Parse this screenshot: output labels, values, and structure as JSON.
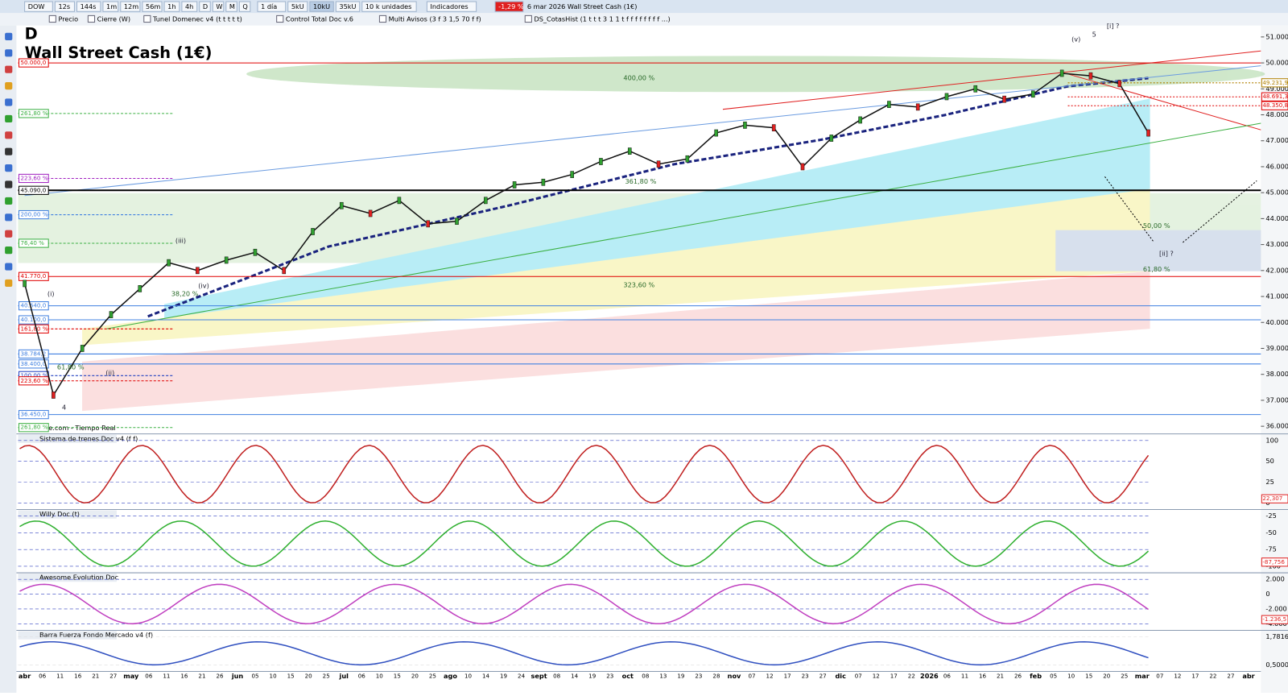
{
  "toolbar": {
    "symbol": "DOW",
    "timeframes": [
      "12s",
      "144s",
      "1m",
      "12m",
      "56m",
      "1h",
      "4h",
      "D",
      "W",
      "M",
      "Q"
    ],
    "interval": "1 día",
    "units": [
      "5kU",
      "10kU",
      "35kU"
    ],
    "unit_select": "10 k unidades",
    "indicators": "Indicadores",
    "change": "-1,29 %",
    "date_title": "6 mar 2026 Wall Street Cash (1€)"
  },
  "legend_bar": [
    "Precio",
    "Cierre (W)",
    "Tunel Domenec v4 (t t t t t)",
    "Control Total Doc v.6",
    "Multi Avisos (3 f 3 1,5 70 f f)",
    "DS_CotasHist (1 t t t 3 1 1 t f f f f f f f f ...)"
  ],
  "main": {
    "letter": "D",
    "title": "Wall Street Cash (1€)",
    "source": "IT-Finance.com - Tiempo Real",
    "ylim": [
      35800,
      51600
    ],
    "yticks": [
      {
        "value": 36000,
        "label": "36.000"
      },
      {
        "value": 37000,
        "label": "37.000"
      },
      {
        "value": 38000,
        "label": "38.000"
      },
      {
        "value": 39000,
        "label": "39.000"
      },
      {
        "value": 40000,
        "label": "40.000"
      },
      {
        "value": 41000,
        "label": "41.000"
      },
      {
        "value": 42000,
        "label": "42.000"
      },
      {
        "value": 43000,
        "label": "43.000"
      },
      {
        "value": 44000,
        "label": "44.000"
      },
      {
        "value": 45000,
        "label": "45.000"
      },
      {
        "value": 46000,
        "label": "46.000"
      },
      {
        "value": 47000,
        "label": "47.000"
      },
      {
        "value": 48000,
        "label": "48.000"
      },
      {
        "value": 49000,
        "label": "49.000"
      },
      {
        "value": 50000,
        "label": "50.000"
      },
      {
        "value": 51000,
        "label": "51.000"
      }
    ],
    "closes": [
      41500,
      37200,
      39000,
      40300,
      41300,
      42300,
      42000,
      42400,
      42700,
      42000,
      43500,
      44500,
      44200,
      44700,
      43800,
      43900,
      44700,
      45300,
      45400,
      45700,
      46200,
      46600,
      46100,
      46300,
      47300,
      47600,
      47500,
      46000,
      47100,
      47800,
      48400,
      48300,
      48700,
      49000,
      48600,
      48800,
      49600,
      49500,
      49200,
      47300
    ],
    "left_labels": [
      {
        "label": "50.000,0",
        "value": 50000,
        "color": "#e00000"
      },
      {
        "label": "261,80 %",
        "value": 48050,
        "color": "#3cb043"
      },
      {
        "label": "223,60 %",
        "value": 45550,
        "color": "#a020c0"
      },
      {
        "label": "45.090,0",
        "value": 45090,
        "color": "#000000"
      },
      {
        "label": "200,00 %",
        "value": 44150,
        "color": "#4080e0"
      },
      {
        "label": "76,40 %",
        "value": 43050,
        "color": "#3cb043"
      },
      {
        "label": "41.770,0",
        "value": 41770,
        "color": "#e00000"
      },
      {
        "label": "40.640,0",
        "value": 40640,
        "color": "#4080e0"
      },
      {
        "label": "40.100,0",
        "value": 40100,
        "color": "#4080e0"
      },
      {
        "label": "161,80 %",
        "value": 39750,
        "color": "#e00000"
      },
      {
        "label": "38.784,2",
        "value": 38784,
        "color": "#4080e0"
      },
      {
        "label": "38.400,0",
        "value": 38400,
        "color": "#4080e0"
      },
      {
        "label": "100,00 %",
        "value": 37950,
        "color": "#2040c0"
      },
      {
        "label": "223,60 %",
        "value": 37750,
        "color": "#e00000"
      },
      {
        "label": "36.450,0",
        "value": 36450,
        "color": "#4080e0"
      },
      {
        "label": "261,80 %",
        "value": 35950,
        "color": "#3cb043"
      }
    ],
    "right_labels": [
      {
        "label": "49.231,9",
        "value": 49231.9,
        "color": "#b08000"
      },
      {
        "label": "48.691,3",
        "value": 48691.3,
        "color": "#e00000"
      },
      {
        "label": "48.350,8",
        "value": 48350.8,
        "color": "#e00000"
      }
    ],
    "annotations": [
      "(v)",
      "5",
      "[i] ?",
      "400,00 %",
      "361,80 %",
      "323,60 %",
      "61,80 %",
      "50,00 %",
      "[ii] ?",
      "(iii)",
      "(iv)",
      "(ii)",
      "(i)",
      "4",
      "38,20 %",
      "61,80 %"
    ]
  },
  "panels": [
    {
      "title": "Sistema de trenes Doc v4 (f f)",
      "ticks": [
        "100",
        "50",
        "25",
        "0"
      ],
      "last": "22,307"
    },
    {
      "title": "Willy Doc (t)",
      "ticks": [
        "-25",
        "-50",
        "-75",
        "-100"
      ],
      "last": "-87,756"
    },
    {
      "title": "Awesome Evolution Doc",
      "ticks": [
        "2.000",
        "0",
        "-2.000",
        "-4.000"
      ],
      "last": "-1.236,5"
    },
    {
      "title": "Barra Fuerza Fondo Mercado v4 (f)",
      "ticks": [
        "1,7816",
        "0,5000"
      ],
      "last": null
    }
  ],
  "x_axis": [
    "abr",
    "06",
    "11",
    "16",
    "21",
    "27",
    "may",
    "06",
    "11",
    "16",
    "21",
    "26",
    "jun",
    "05",
    "10",
    "15",
    "20",
    "25",
    "jul",
    "06",
    "10",
    "15",
    "20",
    "25",
    "ago",
    "10",
    "14",
    "19",
    "24",
    "sept",
    "08",
    "14",
    "19",
    "23",
    "oct",
    "08",
    "13",
    "19",
    "23",
    "28",
    "nov",
    "07",
    "12",
    "17",
    "23",
    "27",
    "dic",
    "07",
    "12",
    "17",
    "22",
    "2026",
    "06",
    "11",
    "16",
    "21",
    "26",
    "feb",
    "05",
    "10",
    "15",
    "20",
    "25",
    "mar",
    "07",
    "12",
    "17",
    "22",
    "27",
    "abr"
  ]
}
